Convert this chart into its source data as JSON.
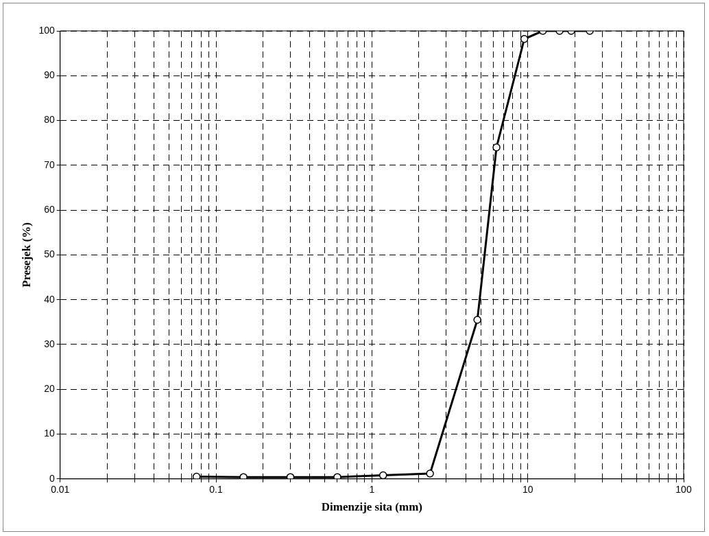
{
  "chart_data": {
    "type": "line",
    "xlabel": "Dimenzije sita (mm)",
    "ylabel": "Presejek (%)",
    "x": [
      0.075,
      0.15,
      0.3,
      0.6,
      1.18,
      2.36,
      4.75,
      6.3,
      9.5,
      12.5,
      16,
      19,
      25
    ],
    "series": [
      {
        "color": "#000000",
        "values": [
          0.5,
          0.4,
          0.4,
          0.4,
          0.8,
          1.2,
          35.5,
          74,
          98.2,
          100,
          100,
          100,
          100
        ]
      }
    ],
    "log": "x",
    "xlim": [
      0.01,
      100
    ],
    "ylim": [
      0,
      100
    ],
    "xticks": [
      0.01,
      {
        "value": 0.02,
        "label": null
      },
      {
        "value": 0.03,
        "label": null
      },
      {
        "value": 0.04,
        "label": null
      },
      {
        "value": 0.05,
        "label": null
      },
      {
        "value": 0.06,
        "label": null
      },
      {
        "value": 0.07,
        "label": null
      },
      {
        "value": 0.08,
        "label": null
      },
      {
        "value": 0.09,
        "label": null
      },
      0.1,
      {
        "value": 0.2,
        "label": null
      },
      {
        "value": 0.3,
        "label": null
      },
      {
        "value": 0.4,
        "label": null
      },
      {
        "value": 0.5,
        "label": null
      },
      {
        "value": 0.6,
        "label": null
      },
      {
        "value": 0.7,
        "label": null
      },
      {
        "value": 0.8,
        "label": null
      },
      {
        "value": 0.9,
        "label": null
      },
      1,
      {
        "value": 2,
        "label": null
      },
      {
        "value": 3,
        "label": null
      },
      {
        "value": 4,
        "label": null
      },
      {
        "value": 5,
        "label": null
      },
      {
        "value": 6,
        "label": null
      },
      {
        "value": 7,
        "label": null
      },
      {
        "value": 8,
        "label": null
      },
      {
        "value": 9,
        "label": null
      },
      10,
      {
        "value": 20,
        "label": null
      },
      {
        "value": 30,
        "label": null
      },
      {
        "value": 40,
        "label": null
      },
      {
        "value": 50,
        "label": null
      },
      {
        "value": 60,
        "label": null
      },
      {
        "value": 70,
        "label": null
      },
      {
        "value": 80,
        "label": null
      },
      {
        "value": 90,
        "label": null
      },
      100
    ],
    "yticks": [
      0,
      10,
      20,
      30,
      40,
      50,
      60,
      70,
      80,
      90,
      100
    ],
    "grid": true,
    "marker": "circle",
    "line_style": "solid"
  }
}
